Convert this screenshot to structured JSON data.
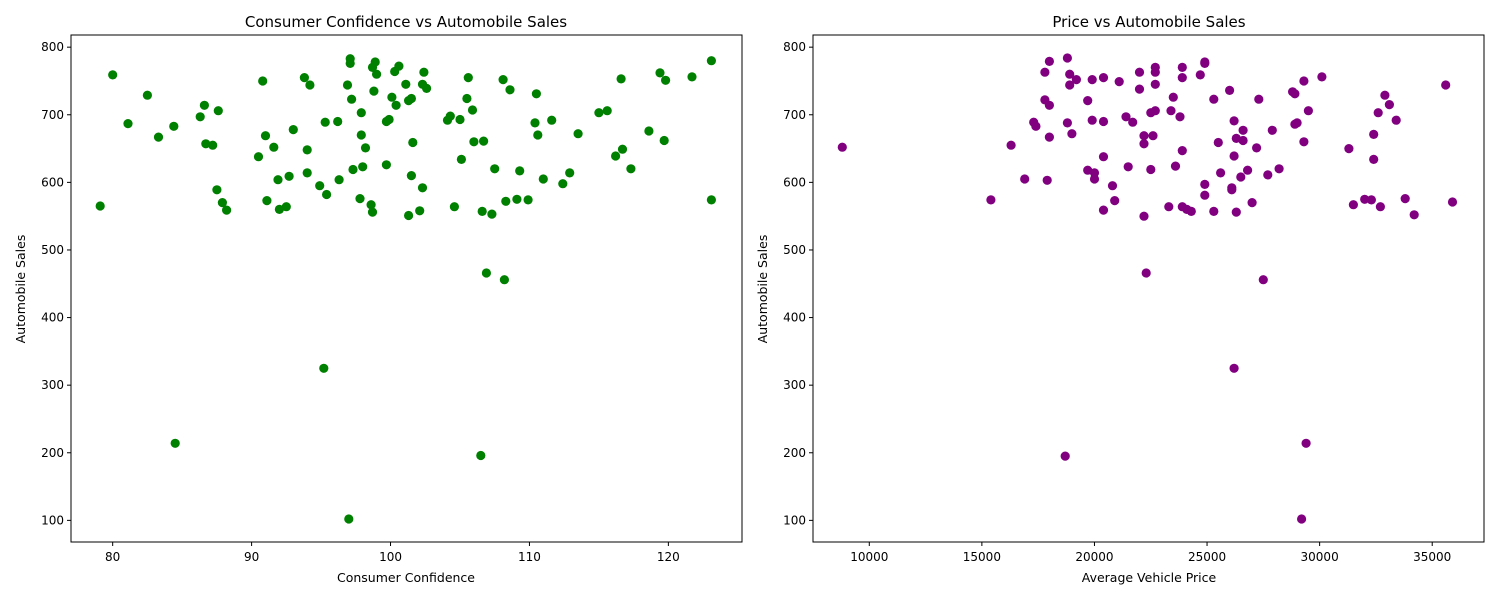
{
  "chart_data": [
    {
      "type": "scatter",
      "title": "Consumer Confidence vs Automobile Sales",
      "xlabel": "Consumer Confidence",
      "ylabel": "Automobile Sales",
      "xlim": [
        77,
        125.3
      ],
      "ylim": [
        68,
        818
      ],
      "xticks": [
        80,
        90,
        100,
        110,
        120
      ],
      "yticks": [
        100,
        200,
        300,
        400,
        500,
        600,
        700,
        800
      ],
      "grid": false,
      "color": "#008000",
      "points": [
        [
          79.1,
          565
        ],
        [
          80.0,
          759
        ],
        [
          81.1,
          687
        ],
        [
          82.5,
          729
        ],
        [
          83.3,
          667
        ],
        [
          84.4,
          683
        ],
        [
          84.5,
          214
        ],
        [
          86.3,
          697
        ],
        [
          86.6,
          714
        ],
        [
          86.7,
          657
        ],
        [
          87.2,
          655
        ],
        [
          87.5,
          589
        ],
        [
          87.6,
          706
        ],
        [
          87.9,
          570
        ],
        [
          88.2,
          559
        ],
        [
          90.5,
          638
        ],
        [
          90.8,
          750
        ],
        [
          91.0,
          669
        ],
        [
          91.1,
          573
        ],
        [
          91.6,
          652
        ],
        [
          91.9,
          604
        ],
        [
          92.0,
          560
        ],
        [
          92.5,
          564
        ],
        [
          92.7,
          609
        ],
        [
          93.0,
          678
        ],
        [
          93.8,
          755
        ],
        [
          94.0,
          648
        ],
        [
          94.0,
          614
        ],
        [
          94.2,
          744
        ],
        [
          94.9,
          595
        ],
        [
          95.2,
          325
        ],
        [
          95.3,
          689
        ],
        [
          95.4,
          582
        ],
        [
          96.2,
          690
        ],
        [
          96.3,
          604
        ],
        [
          96.9,
          744
        ],
        [
          97.0,
          102
        ],
        [
          97.1,
          783
        ],
        [
          97.1,
          776
        ],
        [
          97.2,
          723
        ],
        [
          97.3,
          619
        ],
        [
          97.8,
          576
        ],
        [
          97.9,
          703
        ],
        [
          97.9,
          670
        ],
        [
          98.0,
          623
        ],
        [
          98.2,
          651
        ],
        [
          98.6,
          567
        ],
        [
          98.7,
          556
        ],
        [
          98.7,
          770
        ],
        [
          98.8,
          735
        ],
        [
          98.9,
          778
        ],
        [
          99.0,
          760
        ],
        [
          99.7,
          690
        ],
        [
          99.7,
          626
        ],
        [
          99.9,
          693
        ],
        [
          100.1,
          726
        ],
        [
          100.3,
          764
        ],
        [
          100.4,
          714
        ],
        [
          100.6,
          772
        ],
        [
          101.1,
          745
        ],
        [
          101.3,
          551
        ],
        [
          101.3,
          721
        ],
        [
          101.5,
          724
        ],
        [
          101.5,
          610
        ],
        [
          101.6,
          659
        ],
        [
          102.1,
          558
        ],
        [
          102.3,
          745
        ],
        [
          102.3,
          592
        ],
        [
          102.4,
          763
        ],
        [
          102.6,
          739
        ],
        [
          104.1,
          692
        ],
        [
          104.3,
          698
        ],
        [
          104.6,
          564
        ],
        [
          105.0,
          693
        ],
        [
          105.1,
          634
        ],
        [
          105.5,
          724
        ],
        [
          105.6,
          755
        ],
        [
          105.9,
          707
        ],
        [
          106.0,
          660
        ],
        [
          106.5,
          196
        ],
        [
          106.6,
          557
        ],
        [
          106.7,
          661
        ],
        [
          106.9,
          466
        ],
        [
          107.3,
          553
        ],
        [
          107.5,
          620
        ],
        [
          108.1,
          752
        ],
        [
          108.2,
          456
        ],
        [
          108.3,
          572
        ],
        [
          108.6,
          737
        ],
        [
          109.1,
          575
        ],
        [
          109.3,
          617
        ],
        [
          109.9,
          574
        ],
        [
          110.4,
          688
        ],
        [
          110.5,
          731
        ],
        [
          110.6,
          670
        ],
        [
          111.0,
          605
        ],
        [
          111.6,
          692
        ],
        [
          112.4,
          598
        ],
        [
          112.9,
          614
        ],
        [
          113.5,
          672
        ],
        [
          115.0,
          703
        ],
        [
          115.6,
          706
        ],
        [
          116.2,
          639
        ],
        [
          116.6,
          753
        ],
        [
          116.7,
          649
        ],
        [
          117.3,
          620
        ],
        [
          118.6,
          676
        ],
        [
          119.4,
          762
        ],
        [
          119.8,
          751
        ],
        [
          119.7,
          662
        ],
        [
          121.7,
          756
        ],
        [
          123.1,
          780
        ],
        [
          123.1,
          574
        ]
      ]
    },
    {
      "type": "scatter",
      "title": "Price vs Automobile Sales",
      "xlabel": "Average Vehicle Price",
      "ylabel": "Automobile Sales",
      "xlim": [
        7500,
        37300
      ],
      "ylim": [
        68,
        818
      ],
      "xticks": [
        10000,
        15000,
        20000,
        25000,
        30000,
        35000
      ],
      "yticks": [
        100,
        200,
        300,
        400,
        500,
        600,
        700,
        800
      ],
      "grid": false,
      "color": "#800080",
      "points": [
        [
          8800,
          652
        ],
        [
          15400,
          574
        ],
        [
          16300,
          655
        ],
        [
          16900,
          605
        ],
        [
          17300,
          689
        ],
        [
          17400,
          683
        ],
        [
          17800,
          722
        ],
        [
          17800,
          763
        ],
        [
          17900,
          603
        ],
        [
          18000,
          779
        ],
        [
          18000,
          714
        ],
        [
          18000,
          667
        ],
        [
          18700,
          195
        ],
        [
          18800,
          784
        ],
        [
          18800,
          688
        ],
        [
          18900,
          744
        ],
        [
          18900,
          760
        ],
        [
          19000,
          672
        ],
        [
          19200,
          752
        ],
        [
          19700,
          721
        ],
        [
          19700,
          618
        ],
        [
          19900,
          752
        ],
        [
          19900,
          692
        ],
        [
          20000,
          614
        ],
        [
          20000,
          605
        ],
        [
          20400,
          755
        ],
        [
          20400,
          690
        ],
        [
          20400,
          638
        ],
        [
          20400,
          559
        ],
        [
          20800,
          595
        ],
        [
          20900,
          573
        ],
        [
          21100,
          749
        ],
        [
          21400,
          697
        ],
        [
          21500,
          623
        ],
        [
          21700,
          689
        ],
        [
          22000,
          763
        ],
        [
          22000,
          738
        ],
        [
          22200,
          669
        ],
        [
          22200,
          657
        ],
        [
          22200,
          550
        ],
        [
          22300,
          466
        ],
        [
          22500,
          619
        ],
        [
          22500,
          703
        ],
        [
          22600,
          669
        ],
        [
          22700,
          770
        ],
        [
          22700,
          763
        ],
        [
          22700,
          745
        ],
        [
          22700,
          706
        ],
        [
          23300,
          564
        ],
        [
          23400,
          706
        ],
        [
          23500,
          726
        ],
        [
          23600,
          624
        ],
        [
          23800,
          697
        ],
        [
          23900,
          770
        ],
        [
          23900,
          755
        ],
        [
          23900,
          647
        ],
        [
          23900,
          564
        ],
        [
          24100,
          560
        ],
        [
          24300,
          557
        ],
        [
          24700,
          759
        ],
        [
          24900,
          776
        ],
        [
          24900,
          778
        ],
        [
          24900,
          597
        ],
        [
          24900,
          581
        ],
        [
          25300,
          723
        ],
        [
          25300,
          557
        ],
        [
          25500,
          659
        ],
        [
          25600,
          614
        ],
        [
          26000,
          736
        ],
        [
          26100,
          589
        ],
        [
          26100,
          592
        ],
        [
          26200,
          691
        ],
        [
          26200,
          639
        ],
        [
          26200,
          325
        ],
        [
          26300,
          556
        ],
        [
          26300,
          665
        ],
        [
          26500,
          608
        ],
        [
          26600,
          677
        ],
        [
          26600,
          662
        ],
        [
          26800,
          618
        ],
        [
          27000,
          570
        ],
        [
          27200,
          651
        ],
        [
          27300,
          723
        ],
        [
          27500,
          456
        ],
        [
          27700,
          611
        ],
        [
          27900,
          677
        ],
        [
          28200,
          620
        ],
        [
          28800,
          734
        ],
        [
          28900,
          731
        ],
        [
          28900,
          686
        ],
        [
          29000,
          688
        ],
        [
          29200,
          102
        ],
        [
          29300,
          750
        ],
        [
          29300,
          660
        ],
        [
          29400,
          214
        ],
        [
          29500,
          706
        ],
        [
          30100,
          756
        ],
        [
          31300,
          650
        ],
        [
          31500,
          567
        ],
        [
          32000,
          575
        ],
        [
          32300,
          574
        ],
        [
          32400,
          671
        ],
        [
          32400,
          634
        ],
        [
          32600,
          703
        ],
        [
          32700,
          564
        ],
        [
          32900,
          729
        ],
        [
          33100,
          715
        ],
        [
          33400,
          692
        ],
        [
          33800,
          576
        ],
        [
          34200,
          552
        ],
        [
          35600,
          744
        ],
        [
          35900,
          571
        ]
      ]
    }
  ]
}
